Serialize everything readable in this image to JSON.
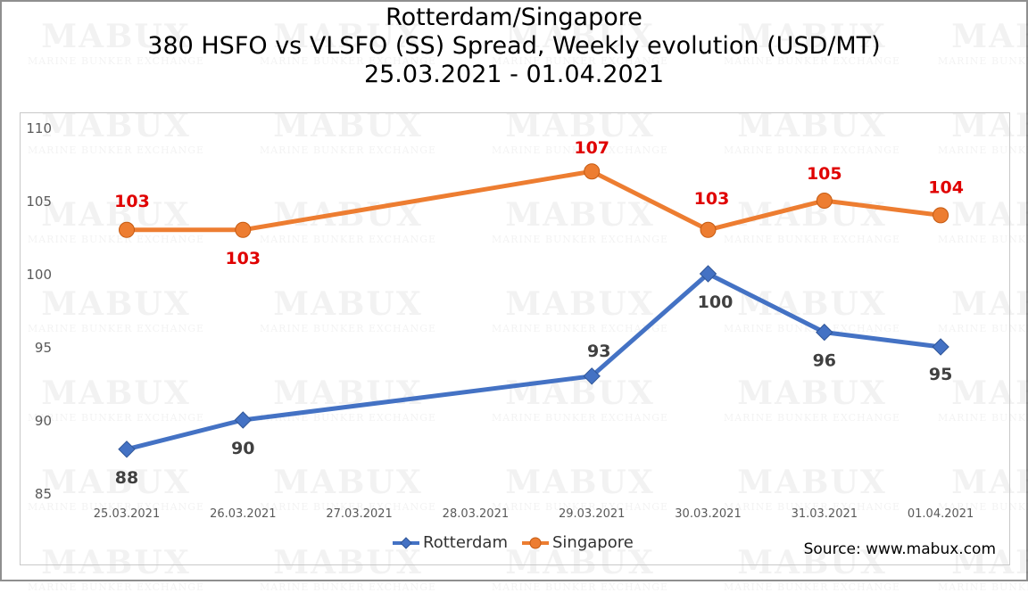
{
  "title": {
    "line1": "Rotterdam/Singapore",
    "line2": "380 HSFO vs VLSFO (SS) Spread, Weekly evolution (USD/MT)",
    "line3": "25.03.2021 - 01.04.2021"
  },
  "source": "Source: www.mabux.com",
  "watermark": {
    "main": "MABUX",
    "sub": "MARINE BUNKER EXCHANGE"
  },
  "chart_data": {
    "type": "line",
    "categories": [
      "25.03.2021",
      "26.03.2021",
      "27.03.2021",
      "28.03.2021",
      "29.03.2021",
      "30.03.2021",
      "31.03.2021",
      "01.04.2021"
    ],
    "ylim": [
      85,
      110
    ],
    "yticks": [
      85,
      90,
      95,
      100,
      105,
      110
    ],
    "grid": false,
    "legend_position": "bottom",
    "series": [
      {
        "name": "Rotterdam",
        "color": "#4472C4",
        "marker": "diamond",
        "label_color": "#404040",
        "points": [
          {
            "x": "25.03.2021",
            "y": 88,
            "label": "88"
          },
          {
            "x": "26.03.2021",
            "y": 90,
            "label": "90"
          },
          {
            "x": "29.03.2021",
            "y": 93,
            "label": "93"
          },
          {
            "x": "30.03.2021",
            "y": 100,
            "label": "100"
          },
          {
            "x": "31.03.2021",
            "y": 96,
            "label": "96"
          },
          {
            "x": "01.04.2021",
            "y": 95,
            "label": "95"
          }
        ]
      },
      {
        "name": "Singapore",
        "color": "#ED7D31",
        "marker": "circle",
        "label_color": "#E00000",
        "points": [
          {
            "x": "25.03.2021",
            "y": 103,
            "label": "103"
          },
          {
            "x": "26.03.2021",
            "y": 103,
            "label": "103"
          },
          {
            "x": "29.03.2021",
            "y": 107,
            "label": "107"
          },
          {
            "x": "30.03.2021",
            "y": 103,
            "label": "103"
          },
          {
            "x": "31.03.2021",
            "y": 105,
            "label": "105"
          },
          {
            "x": "01.04.2021",
            "y": 104,
            "label": "104"
          }
        ]
      }
    ]
  }
}
